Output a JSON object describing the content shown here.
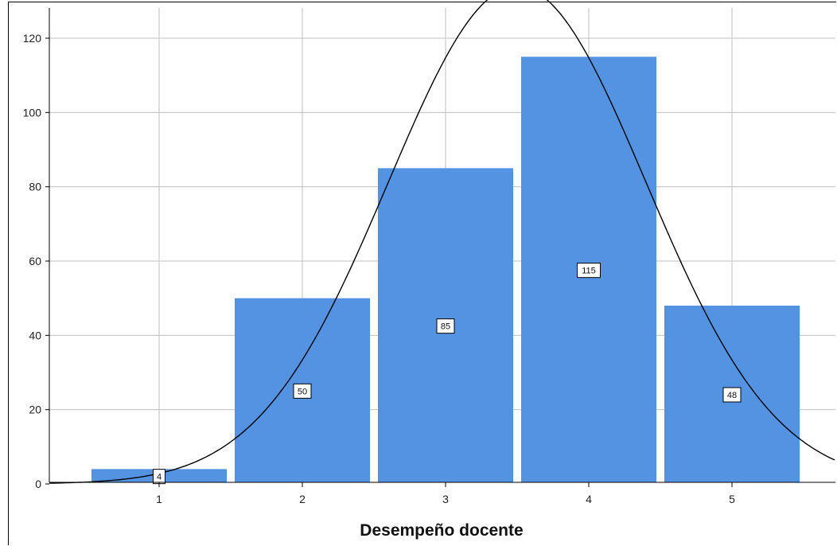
{
  "chart_data": {
    "type": "bar",
    "subtype": "histogram-with-normal-curve",
    "categories": [
      "1",
      "2",
      "3",
      "4",
      "5"
    ],
    "values": [
      4,
      50,
      85,
      115,
      48
    ],
    "data_labels": [
      "4",
      "50",
      "85",
      "115",
      "48"
    ],
    "xlabel": "Desempeño docente",
    "ylabel": "",
    "title": "",
    "ylim": [
      0,
      120
    ],
    "yticks": [
      "0",
      "20",
      "40",
      "60",
      "80",
      "100",
      "120"
    ],
    "grid": true,
    "normal_curve": {
      "mean": 3.5,
      "sd": 0.9,
      "n": 302,
      "bin_width": 1
    },
    "colors": {
      "bar": "#5493e2",
      "curve": "#000000",
      "grid": "#bfbfbf",
      "axis": "#000000"
    }
  }
}
